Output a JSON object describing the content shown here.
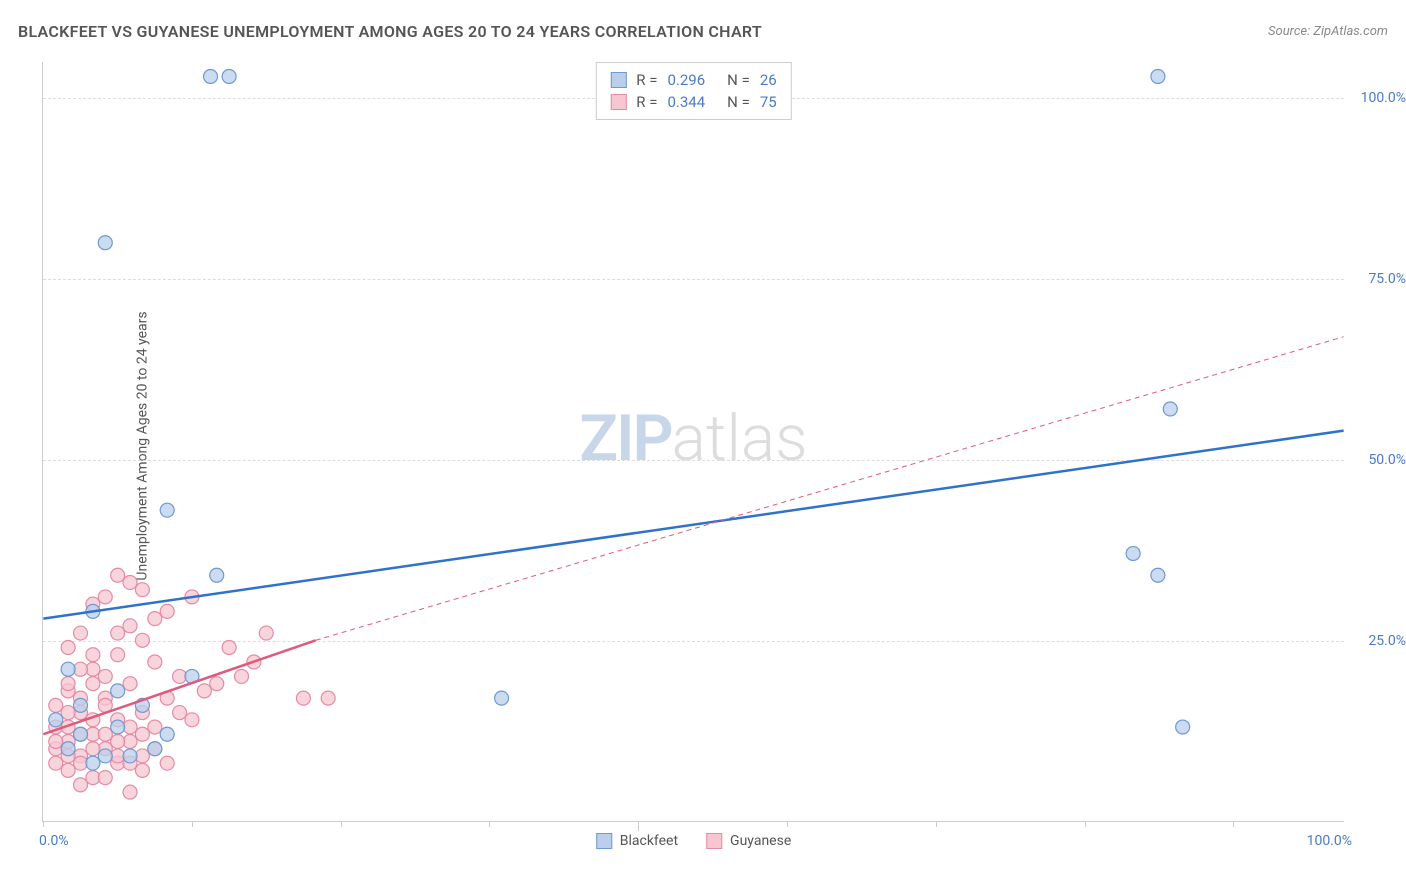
{
  "header": {
    "title": "BLACKFEET VS GUYANESE UNEMPLOYMENT AMONG AGES 20 TO 24 YEARS CORRELATION CHART",
    "source": "Source: ZipAtlas.com"
  },
  "watermark": {
    "zip": "ZIP",
    "atlas": "atlas"
  },
  "chart": {
    "type": "scatter",
    "ylabel": "Unemployment Among Ages 20 to 24 years",
    "xlim": [
      0,
      105
    ],
    "ylim": [
      0,
      105
    ],
    "yticks": [
      25,
      50,
      75,
      100
    ],
    "ytick_labels": [
      "25.0%",
      "50.0%",
      "75.0%",
      "100.0%"
    ],
    "xticks_minor": [
      0,
      12,
      24,
      36,
      48,
      60,
      72,
      84,
      96
    ],
    "xtick_major": [
      0,
      48,
      100
    ],
    "xtick_labels": {
      "left": "0.0%",
      "right": "100.0%"
    },
    "background_color": "#ffffff",
    "grid_color": "#dddddd",
    "axis_color": "#cccccc",
    "tick_label_color": "#4a7bc8",
    "label_color": "#555555",
    "marker_radius": 7,
    "marker_stroke_width": 1.2,
    "trend_line_width": 2.5,
    "dashed_line_width": 1,
    "series": [
      {
        "name": "Blackfeet",
        "color_fill": "#b9cfeb",
        "color_stroke": "#6f99d1",
        "line_color": "#2f72c9",
        "R": "0.296",
        "N": "26",
        "points": [
          [
            5,
            80
          ],
          [
            13.5,
            103
          ],
          [
            15,
            103
          ],
          [
            90,
            103
          ],
          [
            10,
            43
          ],
          [
            14,
            34
          ],
          [
            91,
            57
          ],
          [
            88,
            37
          ],
          [
            90,
            34
          ],
          [
            92,
            13
          ],
          [
            37,
            17
          ],
          [
            4,
            29
          ],
          [
            2,
            21
          ],
          [
            8,
            16
          ],
          [
            6,
            13
          ],
          [
            3,
            12
          ],
          [
            9,
            10
          ],
          [
            5,
            9
          ],
          [
            7,
            9
          ],
          [
            2,
            10
          ],
          [
            4,
            8
          ],
          [
            12,
            20
          ],
          [
            3,
            16
          ],
          [
            6,
            18
          ],
          [
            1,
            14
          ],
          [
            10,
            12
          ]
        ],
        "trend": {
          "x1": 0,
          "y1": 28,
          "x2": 105,
          "y2": 54,
          "dashed_from_x": 105
        }
      },
      {
        "name": "Guyanese",
        "color_fill": "#f6c6d1",
        "color_stroke": "#e58ba3",
        "line_color": "#e05a7d",
        "R": "0.344",
        "N": "75",
        "points": [
          [
            6,
            34
          ],
          [
            7,
            33
          ],
          [
            8,
            32
          ],
          [
            5,
            31
          ],
          [
            4,
            30
          ],
          [
            12,
            31
          ],
          [
            10,
            29
          ],
          [
            3,
            26
          ],
          [
            2,
            24
          ],
          [
            6,
            23
          ],
          [
            8,
            25
          ],
          [
            15,
            24
          ],
          [
            4,
            21
          ],
          [
            9,
            22
          ],
          [
            11,
            20
          ],
          [
            2,
            18
          ],
          [
            5,
            17
          ],
          [
            7,
            19
          ],
          [
            3,
            15
          ],
          [
            6,
            14
          ],
          [
            1,
            13
          ],
          [
            8,
            15
          ],
          [
            4,
            12
          ],
          [
            2,
            11
          ],
          [
            9,
            13
          ],
          [
            5,
            10
          ],
          [
            3,
            9
          ],
          [
            7,
            11
          ],
          [
            1,
            8
          ],
          [
            6,
            8
          ],
          [
            2,
            7
          ],
          [
            4,
            6
          ],
          [
            8,
            9
          ],
          [
            3,
            5
          ],
          [
            5,
            6
          ],
          [
            1,
            10
          ],
          [
            2,
            13
          ],
          [
            3,
            17
          ],
          [
            4,
            19
          ],
          [
            5,
            20
          ],
          [
            6,
            26
          ],
          [
            7,
            27
          ],
          [
            9,
            28
          ],
          [
            10,
            17
          ],
          [
            11,
            15
          ],
          [
            12,
            14
          ],
          [
            13,
            18
          ],
          [
            14,
            19
          ],
          [
            16,
            20
          ],
          [
            17,
            22
          ],
          [
            18,
            26
          ],
          [
            2,
            15
          ],
          [
            3,
            12
          ],
          [
            4,
            14
          ],
          [
            5,
            16
          ],
          [
            6,
            11
          ],
          [
            7,
            13
          ],
          [
            1,
            11
          ],
          [
            2,
            9
          ],
          [
            3,
            8
          ],
          [
            4,
            10
          ],
          [
            5,
            12
          ],
          [
            6,
            9
          ],
          [
            7,
            8
          ],
          [
            8,
            12
          ],
          [
            9,
            10
          ],
          [
            1,
            16
          ],
          [
            2,
            19
          ],
          [
            3,
            21
          ],
          [
            4,
            23
          ],
          [
            21,
            17
          ],
          [
            23,
            17
          ],
          [
            7,
            4
          ],
          [
            8,
            7
          ],
          [
            10,
            8
          ]
        ],
        "trend": {
          "x1": 0,
          "y1": 12,
          "x2": 22,
          "y2": 25,
          "dashed_to_x": 105,
          "dashed_to_y": 67
        }
      }
    ]
  },
  "legend_top_labels": {
    "R": "R =",
    "N": "N ="
  },
  "legend_bottom": [
    {
      "label": "Blackfeet",
      "fill": "#b9cfeb",
      "stroke": "#6f99d1"
    },
    {
      "label": "Guyanese",
      "fill": "#f6c6d1",
      "stroke": "#e58ba3"
    }
  ]
}
